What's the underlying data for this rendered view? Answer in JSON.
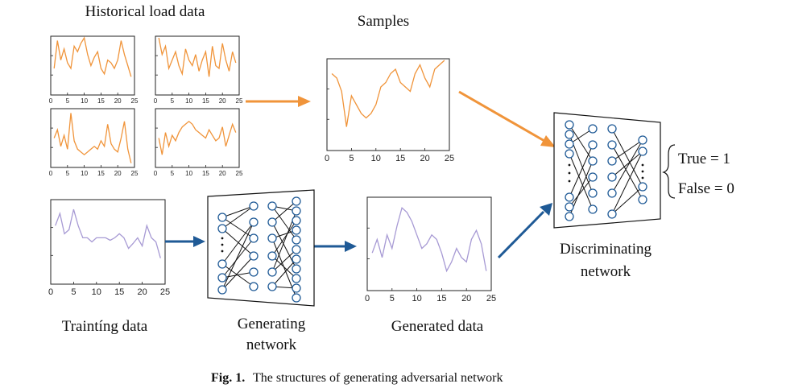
{
  "labels": {
    "historical": "Historical load data",
    "samples": "Samples",
    "training": "Traintíng data",
    "generating_1": "Generating",
    "generating_2": "network",
    "generated": "Generated data",
    "discriminating_1": "Discriminating",
    "discriminating_2": "network",
    "true_eq": "True = 1",
    "false_eq": "False = 0"
  },
  "caption": {
    "prefix": "Fig. 1.",
    "text": "The structures of generating adversarial network"
  },
  "colors": {
    "orange": "#f0943a",
    "purple": "#a79ad4",
    "blue_arrow": "#1f5a96",
    "neuron": "#1f5a96",
    "line": "#111111"
  },
  "axis": {
    "ticks": [
      "0",
      "5",
      "10",
      "15",
      "20",
      "25"
    ]
  },
  "chart_data": [
    {
      "type": "line",
      "panel": "historical-1",
      "x": [
        1,
        2,
        3,
        4,
        5,
        6,
        7,
        8,
        9,
        10,
        11,
        12,
        13,
        14,
        15,
        16,
        17,
        18,
        19,
        20,
        21,
        22,
        23,
        24
      ],
      "values": [
        0.45,
        0.95,
        0.6,
        0.8,
        0.55,
        0.45,
        0.85,
        0.75,
        0.9,
        1.0,
        0.7,
        0.5,
        0.65,
        0.75,
        0.45,
        0.35,
        0.6,
        0.55,
        0.45,
        0.6,
        0.95,
        0.7,
        0.5,
        0.3
      ]
    },
    {
      "type": "line",
      "panel": "historical-2",
      "x": [
        1,
        2,
        3,
        4,
        5,
        6,
        7,
        8,
        9,
        10,
        11,
        12,
        13,
        14,
        15,
        16,
        17,
        18,
        19,
        20,
        21,
        22,
        23,
        24
      ],
      "values": [
        1.0,
        0.7,
        0.85,
        0.45,
        0.6,
        0.75,
        0.5,
        0.35,
        0.8,
        0.6,
        0.5,
        0.7,
        0.4,
        0.6,
        0.75,
        0.3,
        0.85,
        0.5,
        0.45,
        0.9,
        0.6,
        0.4,
        0.75,
        0.55
      ]
    },
    {
      "type": "line",
      "panel": "historical-3",
      "x": [
        1,
        2,
        3,
        4,
        5,
        6,
        7,
        8,
        9,
        10,
        11,
        12,
        13,
        14,
        15,
        16,
        17,
        18,
        19,
        20,
        21,
        22,
        23,
        24
      ],
      "values": [
        0.5,
        0.65,
        0.35,
        0.55,
        0.3,
        0.95,
        0.45,
        0.3,
        0.25,
        0.2,
        0.25,
        0.3,
        0.35,
        0.3,
        0.45,
        0.35,
        0.75,
        0.4,
        0.3,
        0.25,
        0.5,
        0.8,
        0.3,
        0.05
      ]
    },
    {
      "type": "line",
      "panel": "historical-4",
      "x": [
        1,
        2,
        3,
        4,
        5,
        6,
        7,
        8,
        9,
        10,
        11,
        12,
        13,
        14,
        15,
        16,
        17,
        18,
        19,
        20,
        21,
        22,
        23,
        24
      ],
      "values": [
        0.5,
        0.2,
        0.6,
        0.35,
        0.55,
        0.45,
        0.6,
        0.7,
        0.75,
        0.8,
        0.75,
        0.65,
        0.6,
        0.55,
        0.5,
        0.65,
        0.55,
        0.45,
        0.5,
        0.7,
        0.35,
        0.55,
        0.75,
        0.6
      ]
    },
    {
      "type": "line",
      "panel": "samples",
      "x": [
        1,
        2,
        3,
        4,
        5,
        6,
        7,
        8,
        9,
        10,
        11,
        12,
        13,
        14,
        15,
        16,
        17,
        18,
        19,
        20,
        21,
        22,
        23,
        24
      ],
      "values": [
        0.85,
        0.8,
        0.65,
        0.25,
        0.6,
        0.5,
        0.4,
        0.35,
        0.4,
        0.5,
        0.7,
        0.75,
        0.85,
        0.9,
        0.75,
        0.7,
        0.65,
        0.85,
        0.95,
        0.8,
        0.7,
        0.9,
        0.95,
        1.0
      ]
    },
    {
      "type": "line",
      "panel": "training",
      "x": [
        1,
        2,
        3,
        4,
        5,
        6,
        7,
        8,
        9,
        10,
        11,
        12,
        13,
        14,
        15,
        16,
        17,
        18,
        19,
        20,
        21,
        22,
        23,
        24
      ],
      "values": [
        0.7,
        0.85,
        0.6,
        0.65,
        0.9,
        0.7,
        0.55,
        0.55,
        0.5,
        0.55,
        0.55,
        0.55,
        0.52,
        0.55,
        0.6,
        0.55,
        0.42,
        0.48,
        0.55,
        0.45,
        0.7,
        0.55,
        0.5,
        0.3
      ]
    },
    {
      "type": "line",
      "panel": "generated",
      "x": [
        1,
        2,
        3,
        4,
        5,
        6,
        7,
        8,
        9,
        10,
        11,
        12,
        13,
        14,
        15,
        16,
        17,
        18,
        19,
        20,
        21,
        22,
        23,
        24
      ],
      "values": [
        0.4,
        0.55,
        0.35,
        0.6,
        0.45,
        0.7,
        0.9,
        0.85,
        0.75,
        0.6,
        0.45,
        0.5,
        0.6,
        0.55,
        0.4,
        0.2,
        0.3,
        0.45,
        0.35,
        0.3,
        0.55,
        0.65,
        0.5,
        0.2
      ]
    }
  ]
}
